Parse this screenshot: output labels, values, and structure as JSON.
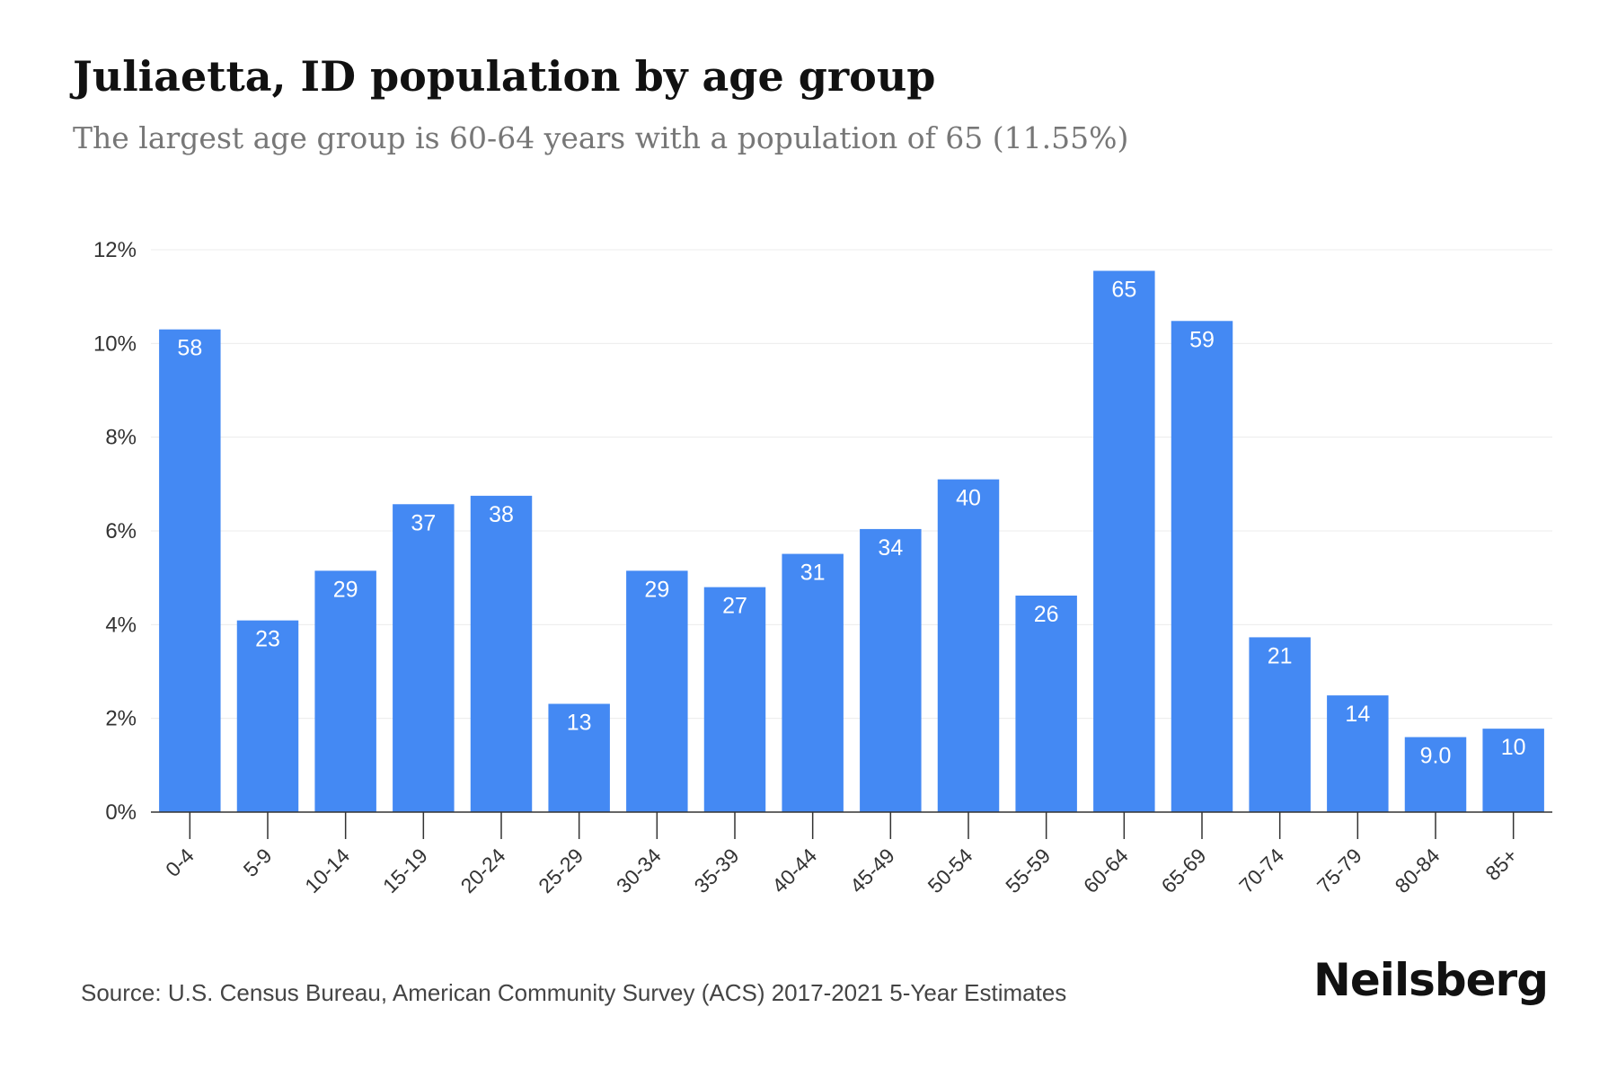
{
  "header": {
    "title": "Juliaetta, ID population by age group",
    "subtitle": "The largest age group is 60-64 years with a population of 65 (11.55%)"
  },
  "footer": {
    "source": "Source: U.S. Census Bureau, American Community Survey (ACS) 2017-2021 5-Year Estimates",
    "brand": "Neilsberg"
  },
  "colors": {
    "bar": "#4489f3",
    "bar_label": "#ffffff"
  },
  "chart_data": {
    "type": "bar",
    "title": "Juliaetta, ID population by age group",
    "subtitle": "The largest age group is 60-64 years with a population of 65 (11.55%)",
    "xlabel": "",
    "ylabel": "",
    "categories": [
      "0-4",
      "5-9",
      "10-14",
      "15-19",
      "20-24",
      "25-29",
      "30-34",
      "35-39",
      "40-44",
      "45-49",
      "50-54",
      "55-59",
      "60-64",
      "65-69",
      "70-74",
      "75-79",
      "80-84",
      "85+"
    ],
    "values": [
      10.3,
      4.09,
      5.15,
      6.57,
      6.75,
      2.31,
      5.15,
      4.8,
      5.51,
      6.04,
      7.1,
      4.62,
      11.55,
      10.48,
      3.73,
      2.49,
      1.6,
      1.78
    ],
    "value_unit": "%",
    "data_labels": [
      "58",
      "23",
      "29",
      "37",
      "38",
      "13",
      "29",
      "27",
      "31",
      "34",
      "40",
      "26",
      "65",
      "59",
      "21",
      "14",
      "9.0",
      "10"
    ],
    "y_ticks": [
      "0%",
      "2%",
      "4%",
      "6%",
      "8%",
      "10%",
      "12%"
    ],
    "y_tick_values": [
      0,
      2,
      4,
      6,
      8,
      10,
      12
    ],
    "ylim": [
      0,
      12
    ],
    "grid": true,
    "legend": "none"
  }
}
